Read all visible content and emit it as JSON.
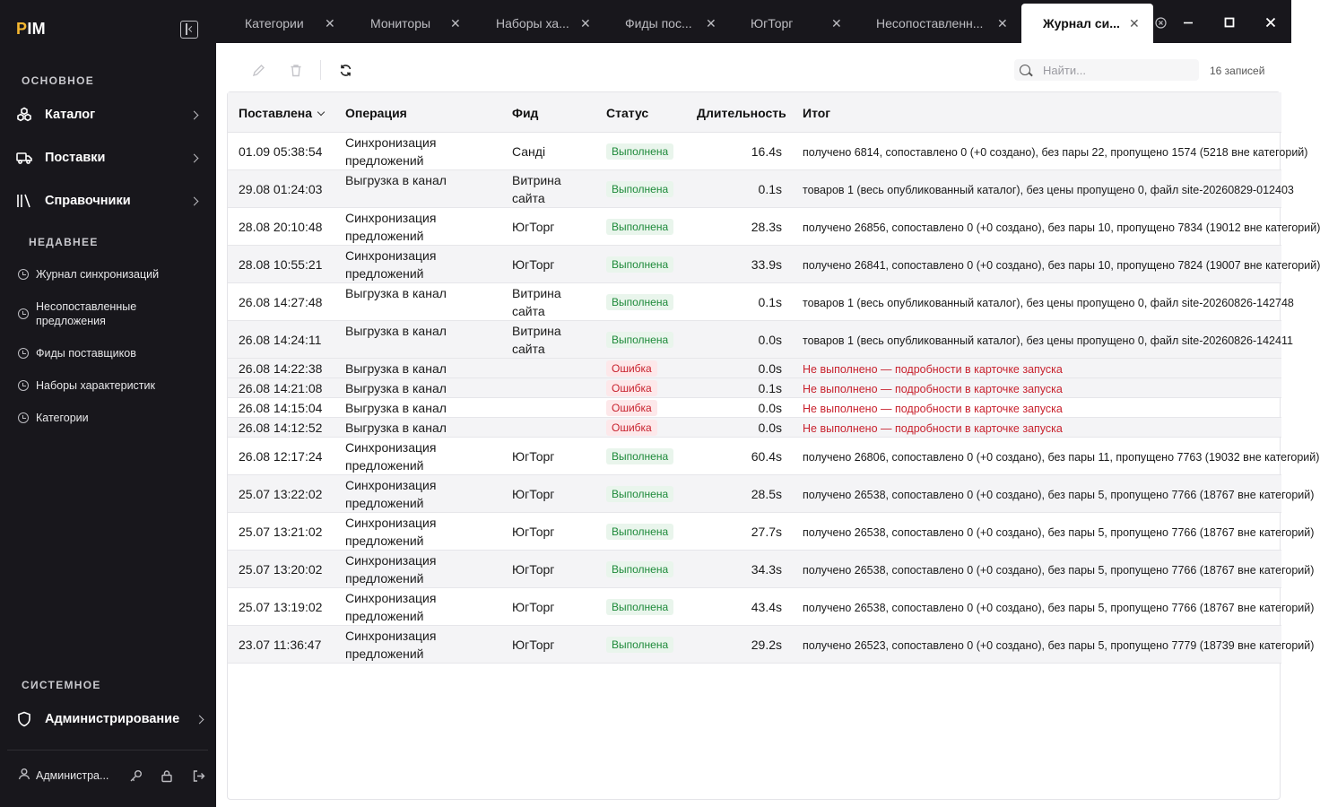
{
  "app": {
    "logo": "PIM"
  },
  "sidebar": {
    "section_main": "ОСНОВНОЕ",
    "nav": [
      {
        "label": "Каталог",
        "icon": "catalog-icon"
      },
      {
        "label": "Поставки",
        "icon": "truck-icon"
      },
      {
        "label": "Справочники",
        "icon": "library-icon"
      }
    ],
    "section_recent": "НЕДАВНЕЕ",
    "recent": [
      "Журнал синхронизаций",
      "Несопоставленные предложения",
      "Фиды поставщиков",
      "Наборы характеристик",
      "Категории"
    ],
    "section_system": "СИСТЕМНОЕ",
    "admin": {
      "label": "Администрирование",
      "icon": "shield-icon"
    },
    "user": {
      "name": "Администра..."
    }
  },
  "tabs": [
    {
      "label": "Категории"
    },
    {
      "label": "Мониторы"
    },
    {
      "label": "Наборы ха..."
    },
    {
      "label": "Фиды пос..."
    },
    {
      "label": "ЮгТорг"
    },
    {
      "label": "Несопоставленн..."
    },
    {
      "label": "Журнал си...",
      "active": true
    }
  ],
  "toolbar": {
    "search_placeholder": "Найти...",
    "records": "16 записей"
  },
  "table": {
    "columns": {
      "placed": "Поставлена",
      "operation": "Операция",
      "feed": "Фид",
      "status": "Статус",
      "duration": "Длительность",
      "result": "Итог"
    },
    "rows": [
      {
        "date": "01.09 05:38:54",
        "op": "Синхронизация предложений",
        "feed": "Санді",
        "status": "Выполнена",
        "ok": true,
        "dur": "16.4s",
        "result": "получено 6814, сопоставлено 0 (+0 создано), без пары 22, пропущено 1574 (5218 вне категорий)"
      },
      {
        "date": "29.08 01:24:03",
        "op": "Выгрузка в канал",
        "feed": "Витрина сайта",
        "status": "Выполнена",
        "ok": true,
        "dur": "0.1s",
        "result": "товаров 1 (весь опубликованный каталог), без цены пропущено 0, файл site-20260829-012403"
      },
      {
        "date": "28.08 20:10:48",
        "op": "Синхронизация предложений",
        "feed": "ЮгТорг",
        "status": "Выполнена",
        "ok": true,
        "dur": "28.3s",
        "result": "получено 26856, сопоставлено 0 (+0 создано), без пары 10, пропущено 7834 (19012 вне категорий)"
      },
      {
        "date": "28.08 10:55:21",
        "op": "Синхронизация предложений",
        "feed": "ЮгТорг",
        "status": "Выполнена",
        "ok": true,
        "dur": "33.9s",
        "result": "получено 26841, сопоставлено 0 (+0 создано), без пары 10, пропущено 7824 (19007 вне категорий)"
      },
      {
        "date": "26.08 14:27:48",
        "op": "Выгрузка в канал",
        "feed": "Витрина сайта",
        "status": "Выполнена",
        "ok": true,
        "dur": "0.1s",
        "result": "товаров 1 (весь опубликованный каталог), без цены пропущено 0, файл site-20260826-142748"
      },
      {
        "date": "26.08 14:24:11",
        "op": "Выгрузка в канал",
        "feed": "Витрина сайта",
        "status": "Выполнена",
        "ok": true,
        "dur": "0.0s",
        "result": "товаров 1 (весь опубликованный каталог), без цены пропущено 0, файл site-20260826-142411"
      },
      {
        "date": "26.08 14:22:38",
        "op": "Выгрузка в канал",
        "feed": "",
        "status": "Ошибка",
        "ok": false,
        "dur": "0.0s",
        "result": "Не выполнено — подробности в карточке запуска"
      },
      {
        "date": "26.08 14:21:08",
        "op": "Выгрузка в канал",
        "feed": "",
        "status": "Ошибка",
        "ok": false,
        "dur": "0.1s",
        "result": "Не выполнено — подробности в карточке запуска"
      },
      {
        "date": "26.08 14:15:04",
        "op": "Выгрузка в канал",
        "feed": "",
        "status": "Ошибка",
        "ok": false,
        "dur": "0.0s",
        "result": "Не выполнено — подробности в карточке запуска"
      },
      {
        "date": "26.08 14:12:52",
        "op": "Выгрузка в канал",
        "feed": "",
        "status": "Ошибка",
        "ok": false,
        "dur": "0.0s",
        "result": "Не выполнено — подробности в карточке запуска"
      },
      {
        "date": "26.08 12:17:24",
        "op": "Синхронизация предложений",
        "feed": "ЮгТорг",
        "status": "Выполнена",
        "ok": true,
        "dur": "60.4s",
        "result": "получено 26806, сопоставлено 0 (+0 создано), без пары 11, пропущено 7763 (19032 вне категорий)"
      },
      {
        "date": "25.07 13:22:02",
        "op": "Синхронизация предложений",
        "feed": "ЮгТорг",
        "status": "Выполнена",
        "ok": true,
        "dur": "28.5s",
        "result": "получено 26538, сопоставлено 0 (+0 создано), без пары 5, пропущено 7766 (18767 вне категорий)"
      },
      {
        "date": "25.07 13:21:02",
        "op": "Синхронизация предложений",
        "feed": "ЮгТорг",
        "status": "Выполнена",
        "ok": true,
        "dur": "27.7s",
        "result": "получено 26538, сопоставлено 0 (+0 создано), без пары 5, пропущено 7766 (18767 вне категорий)"
      },
      {
        "date": "25.07 13:20:02",
        "op": "Синхронизация предложений",
        "feed": "ЮгТорг",
        "status": "Выполнена",
        "ok": true,
        "dur": "34.3s",
        "result": "получено 26538, сопоставлено 0 (+0 создано), без пары 5, пропущено 7766 (18767 вне категорий)"
      },
      {
        "date": "25.07 13:19:02",
        "op": "Синхронизация предложений",
        "feed": "ЮгТорг",
        "status": "Выполнена",
        "ok": true,
        "dur": "43.4s",
        "result": "получено 26538, сопоставлено 0 (+0 создано), без пары 5, пропущено 7766 (18767 вне категорий)"
      },
      {
        "date": "23.07 11:36:47",
        "op": "Синхронизация предложений",
        "feed": "ЮгТорг",
        "status": "Выполнена",
        "ok": true,
        "dur": "29.2s",
        "result": "получено 26523, сопоставлено 0 (+0 создано), без пары 5, пропущено 7779 (18739 вне категорий)"
      }
    ]
  },
  "colors": {
    "sidebar_bg": "#18171c",
    "success": "#1e8a3a",
    "error": "#c8222e",
    "logo_accent": "#f5b731"
  }
}
